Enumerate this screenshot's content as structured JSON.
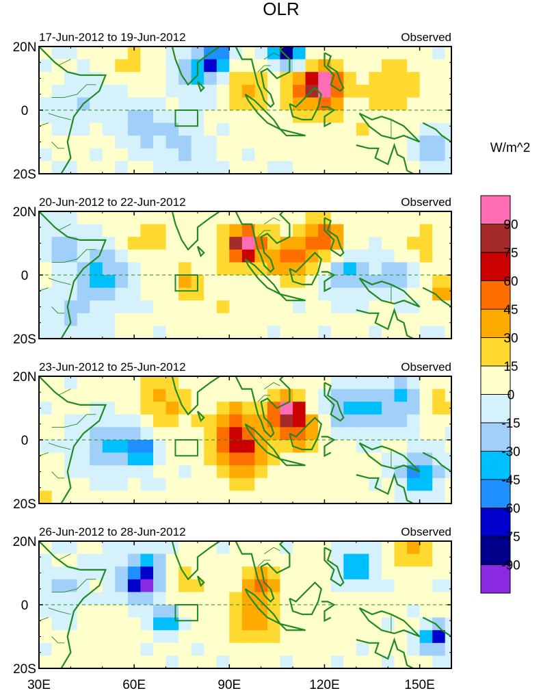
{
  "chart_data": {
    "type": "heatmap",
    "title": "OLR",
    "units_label": "W/m^2",
    "colorbar": {
      "levels": [
        "-90",
        "-75",
        "-60",
        "-45",
        "-30",
        "-15",
        "0",
        "15",
        "30",
        "45",
        "60",
        "75",
        "90"
      ],
      "colors": [
        "#8a2be2",
        "#00008b",
        "#0000cd",
        "#1e90ff",
        "#00bfff",
        "#a0cffa",
        "#d4f1fc",
        "#ffffcc",
        "#ffd92f",
        "#ffaa00",
        "#ff6f00",
        "#cc0000",
        "#a52a2a",
        "#ff6eb4"
      ]
    },
    "x_axis": {
      "range": [
        30,
        160
      ],
      "ticks": [
        30,
        60,
        90,
        120,
        150
      ],
      "tick_labels": [
        "30E",
        "60E",
        "90E",
        "120E",
        "150E"
      ]
    },
    "y_axis": {
      "range": [
        -20,
        20
      ],
      "ticks": [
        20,
        0,
        -20
      ],
      "tick_labels": [
        "20N",
        "0",
        "20S"
      ]
    },
    "box_region": {
      "lon": [
        73,
        80
      ],
      "lat": [
        -5,
        0
      ]
    },
    "panels": [
      {
        "left_label": "17-Jun-2012 to 19-Jun-2012",
        "right_label": "Observed",
        "anomalies": [
          {
            "lon": 42,
            "lat": 2,
            "r": 7,
            "v": -20
          },
          {
            "lon": 58,
            "lat": 15,
            "r": 6,
            "v": 20
          },
          {
            "lon": 62,
            "lat": -5,
            "r": 7,
            "v": -25
          },
          {
            "lon": 80,
            "lat": 12,
            "r": 7,
            "v": -35
          },
          {
            "lon": 86,
            "lat": 16,
            "r": 4,
            "v": -70
          },
          {
            "lon": 95,
            "lat": 6,
            "r": 7,
            "v": 35
          },
          {
            "lon": 108,
            "lat": 18,
            "r": 5,
            "v": -85
          },
          {
            "lon": 117,
            "lat": 7,
            "r": 9,
            "v": 55
          },
          {
            "lon": 120,
            "lat": 8,
            "r": 4,
            "v": 80
          },
          {
            "lon": 142,
            "lat": 8,
            "r": 10,
            "v": 25
          },
          {
            "lon": 155,
            "lat": -12,
            "r": 5,
            "v": -40
          },
          {
            "lon": 75,
            "lat": -12,
            "r": 8,
            "v": -20
          },
          {
            "lon": 130,
            "lat": -12,
            "r": 10,
            "v": 12
          }
        ]
      },
      {
        "left_label": "20-Jun-2012 to 22-Jun-2012",
        "right_label": "Observed",
        "anomalies": [
          {
            "lon": 50,
            "lat": 0,
            "r": 8,
            "v": -40
          },
          {
            "lon": 37,
            "lat": 10,
            "r": 6,
            "v": -25
          },
          {
            "lon": 65,
            "lat": 12,
            "r": 8,
            "v": 20
          },
          {
            "lon": 77,
            "lat": -2,
            "r": 5,
            "v": 35
          },
          {
            "lon": 95,
            "lat": 9,
            "r": 7,
            "v": 60
          },
          {
            "lon": 95,
            "lat": 10,
            "r": 3,
            "v": 78
          },
          {
            "lon": 110,
            "lat": 5,
            "r": 7,
            "v": 50
          },
          {
            "lon": 120,
            "lat": 12,
            "r": 6,
            "v": 55
          },
          {
            "lon": 128,
            "lat": 0,
            "r": 7,
            "v": -35
          },
          {
            "lon": 142,
            "lat": 0,
            "r": 6,
            "v": -25
          },
          {
            "lon": 150,
            "lat": 10,
            "r": 8,
            "v": 20
          },
          {
            "lon": 158,
            "lat": -5,
            "r": 4,
            "v": 45
          },
          {
            "lon": 90,
            "lat": -12,
            "r": 10,
            "v": 12
          },
          {
            "lon": 40,
            "lat": -12,
            "r": 7,
            "v": -20
          }
        ]
      },
      {
        "left_label": "23-Jun-2012 to 25-Jun-2012",
        "right_label": "Observed",
        "anomalies": [
          {
            "lon": 52,
            "lat": -2,
            "r": 9,
            "v": -35
          },
          {
            "lon": 62,
            "lat": -3,
            "r": 4,
            "v": -65
          },
          {
            "lon": 70,
            "lat": 12,
            "r": 9,
            "v": 30
          },
          {
            "lon": 92,
            "lat": 3,
            "r": 9,
            "v": 50
          },
          {
            "lon": 95,
            "lat": -6,
            "r": 8,
            "v": 40
          },
          {
            "lon": 108,
            "lat": 9,
            "r": 5,
            "v": 78
          },
          {
            "lon": 112,
            "lat": 3,
            "r": 7,
            "v": 45
          },
          {
            "lon": 130,
            "lat": 10,
            "r": 8,
            "v": -40
          },
          {
            "lon": 145,
            "lat": 12,
            "r": 7,
            "v": -35
          },
          {
            "lon": 150,
            "lat": -10,
            "r": 6,
            "v": -55
          },
          {
            "lon": 155,
            "lat": 12,
            "r": 5,
            "v": 35
          },
          {
            "lon": 32,
            "lat": -16,
            "r": 3,
            "v": 25
          },
          {
            "lon": 120,
            "lat": -12,
            "r": 8,
            "v": 10
          }
        ]
      },
      {
        "left_label": "26-Jun-2012 to 28-Jun-2012",
        "right_label": "Observed",
        "anomalies": [
          {
            "lon": 63,
            "lat": 9,
            "r": 8,
            "v": -50
          },
          {
            "lon": 63,
            "lat": 7,
            "r": 3,
            "v": -78
          },
          {
            "lon": 38,
            "lat": 5,
            "r": 6,
            "v": -25
          },
          {
            "lon": 75,
            "lat": 8,
            "r": 6,
            "v": 22
          },
          {
            "lon": 100,
            "lat": 7,
            "r": 7,
            "v": 40
          },
          {
            "lon": 98,
            "lat": -6,
            "r": 8,
            "v": 35
          },
          {
            "lon": 130,
            "lat": 12,
            "r": 6,
            "v": -45
          },
          {
            "lon": 148,
            "lat": 16,
            "r": 6,
            "v": 30
          },
          {
            "lon": 155,
            "lat": -10,
            "r": 4,
            "v": -75
          },
          {
            "lon": 120,
            "lat": 0,
            "r": 10,
            "v": 10
          },
          {
            "lon": 70,
            "lat": -5,
            "r": 4,
            "v": -50
          },
          {
            "lon": 50,
            "lat": -12,
            "r": 9,
            "v": 8
          }
        ]
      }
    ]
  }
}
